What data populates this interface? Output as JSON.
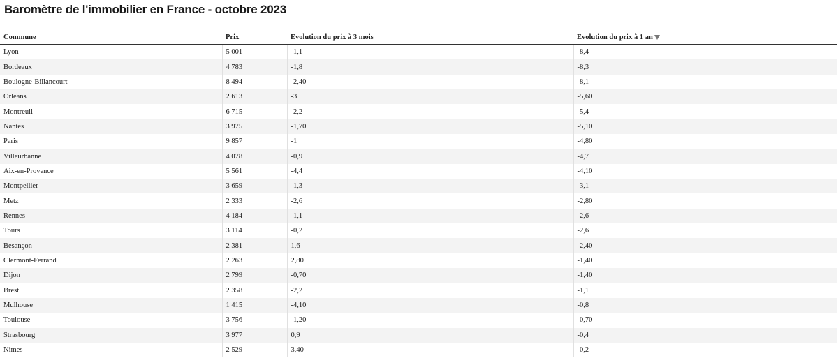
{
  "title": "Baromètre de l'immobilier en France - octobre 2023",
  "table": {
    "columns": [
      "Commune",
      "Prix",
      "Evolution du prix à 3 mois",
      "Evolution du prix à 1 an"
    ],
    "rows": [
      [
        "Lyon",
        "5 001",
        "-1,1",
        "-8,4"
      ],
      [
        "Bordeaux",
        "4 783",
        "-1,8",
        "-8,3"
      ],
      [
        "Boulogne-Billancourt",
        "8 494",
        "-2,40",
        "-8,1"
      ],
      [
        "Orléans",
        "2 613",
        "-3",
        "-5,60"
      ],
      [
        "Montreuil",
        "6 715",
        "-2,2",
        "-5,4"
      ],
      [
        "Nantes",
        "3 975",
        "-1,70",
        "-5,10"
      ],
      [
        "Paris",
        "9 857",
        "-1",
        "-4,80"
      ],
      [
        "Villeurbanne",
        "4 078",
        "-0,9",
        "-4,7"
      ],
      [
        "Aix-en-Provence",
        "5 561",
        "-4,4",
        "-4,10"
      ],
      [
        "Montpellier",
        "3 659",
        "-1,3",
        "-3,1"
      ],
      [
        "Metz",
        "2 333",
        "-2,6",
        "-2,80"
      ],
      [
        "Rennes",
        "4 184",
        "-1,1",
        "-2,6"
      ],
      [
        "Tours",
        "3 114",
        "-0,2",
        "-2,6"
      ],
      [
        "Besançon",
        "2 381",
        "1,6",
        "-2,40"
      ],
      [
        "Clermont-Ferrand",
        "2 263",
        "2,80",
        "-1,40"
      ],
      [
        "Dijon",
        "2 799",
        "-0,70",
        "-1,40"
      ],
      [
        "Brest",
        "2 358",
        "-2,2",
        "-1,1"
      ],
      [
        "Mulhouse",
        "1 415",
        "-4,10",
        "-0,8"
      ],
      [
        "Toulouse",
        "3 756",
        "-1,20",
        "-0,70"
      ],
      [
        "Strasbourg",
        "3 977",
        "0,9",
        "-0,4"
      ],
      [
        "Nimes",
        "2 529",
        "3,40",
        "-0,2"
      ]
    ]
  }
}
